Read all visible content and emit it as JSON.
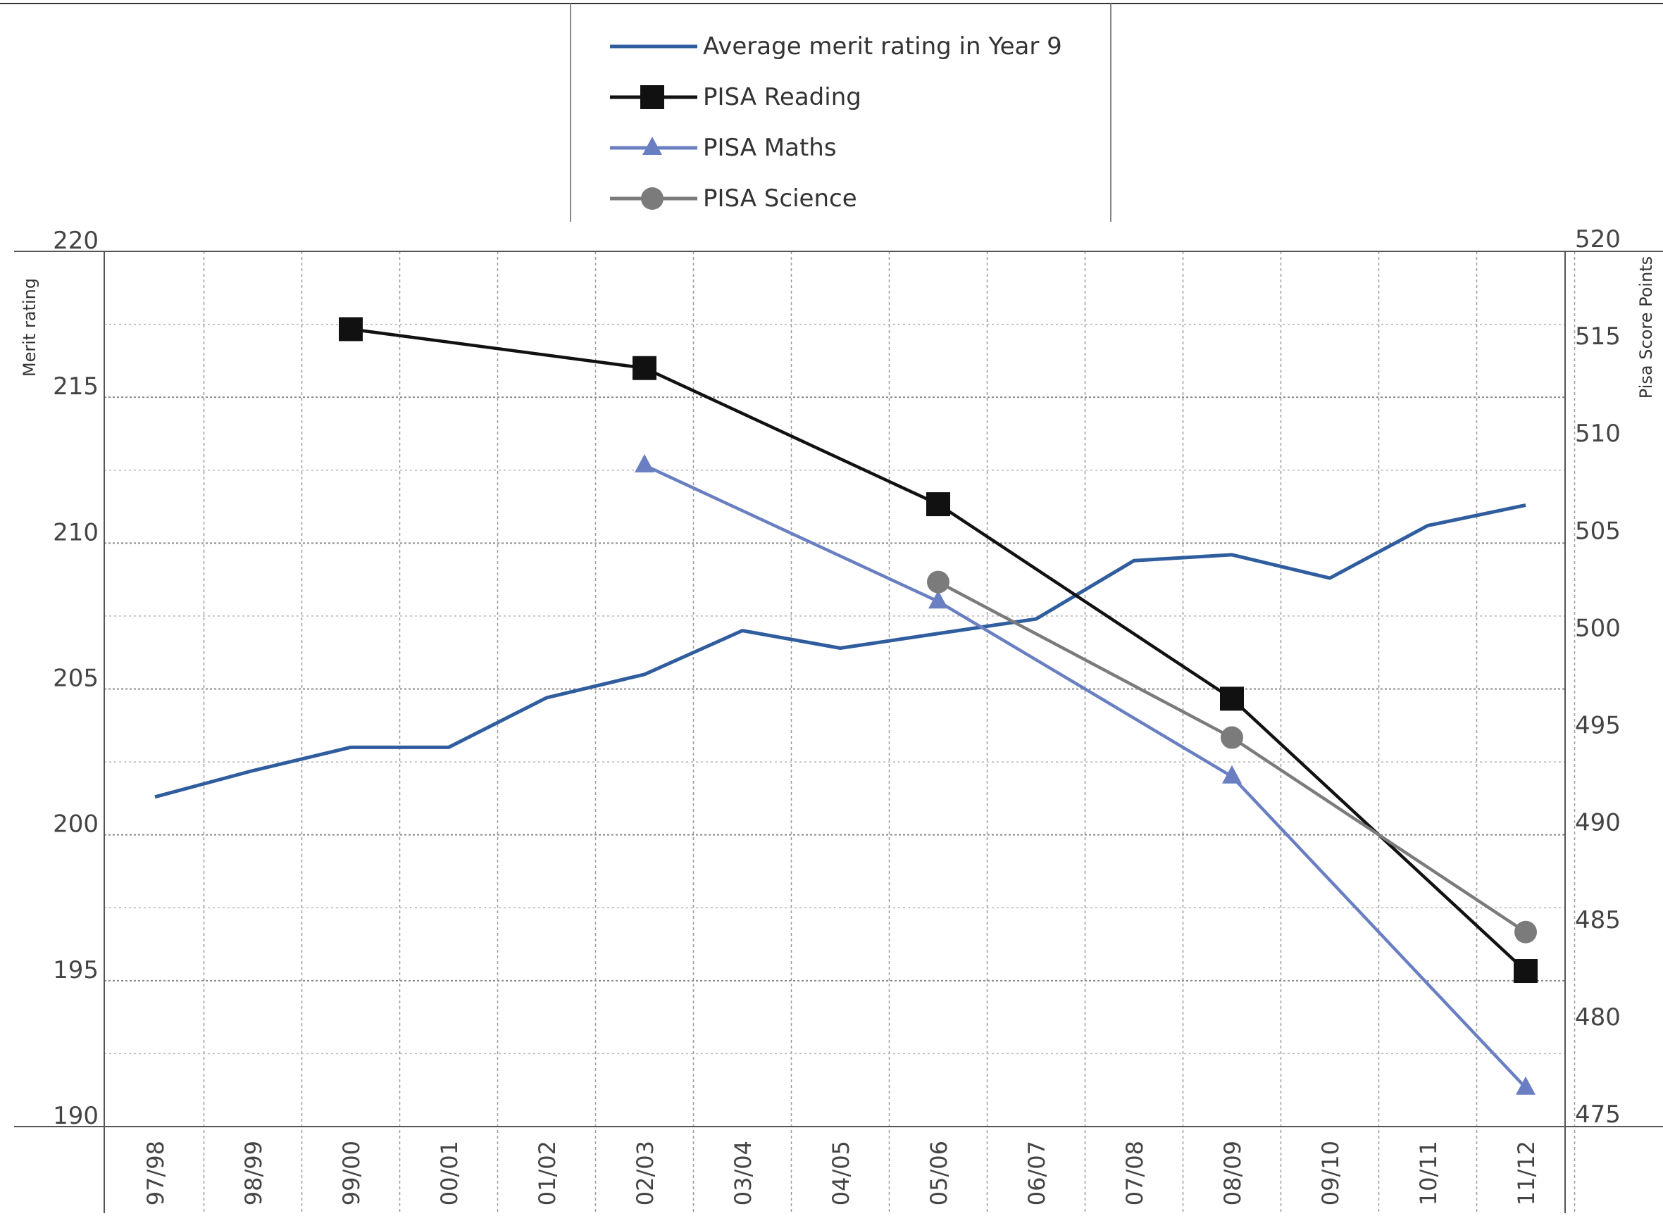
{
  "chart_data": {
    "type": "line",
    "categories": [
      "97/98",
      "98/99",
      "99/00",
      "00/01",
      "01/02",
      "02/03",
      "03/04",
      "04/05",
      "05/06",
      "06/07",
      "07/08",
      "08/09",
      "09/10",
      "10/11",
      "11/12"
    ],
    "ylabel": "Merit rating",
    "y2label": "Pisa Score Points",
    "ylim": [
      190,
      220
    ],
    "y2lim": [
      475,
      520
    ],
    "yticks": [
      "190",
      "195",
      "200",
      "205",
      "210",
      "215",
      "220"
    ],
    "y2ticks": [
      "475",
      "480",
      "485",
      "490",
      "495",
      "500",
      "505",
      "510",
      "515",
      "520"
    ],
    "grid": true,
    "legend_position": "top-center",
    "series": [
      {
        "name": "Average merit rating in Year 9",
        "axis": "left",
        "color": "#2f5d9e",
        "marker": "none",
        "values": [
          201.3,
          202.2,
          203.0,
          203.0,
          204.7,
          205.5,
          207.0,
          206.4,
          206.9,
          207.4,
          209.4,
          209.6,
          208.8,
          210.6,
          211.3
        ]
      },
      {
        "name": "PISA Reading",
        "axis": "right",
        "color": "#111111",
        "marker": "square",
        "values": [
          null,
          null,
          516,
          null,
          null,
          514,
          null,
          null,
          507,
          null,
          null,
          497,
          null,
          null,
          483
        ]
      },
      {
        "name": "PISA Maths",
        "axis": "right",
        "color": "#6a7fc1",
        "marker": "triangle",
        "values": [
          null,
          null,
          null,
          null,
          null,
          509,
          null,
          null,
          502,
          null,
          null,
          493,
          null,
          null,
          477
        ]
      },
      {
        "name": "PISA Science",
        "axis": "right",
        "color": "#7b7b7b",
        "marker": "circle",
        "values": [
          null,
          null,
          null,
          null,
          null,
          null,
          null,
          null,
          503,
          null,
          null,
          495,
          null,
          null,
          485
        ]
      }
    ]
  }
}
